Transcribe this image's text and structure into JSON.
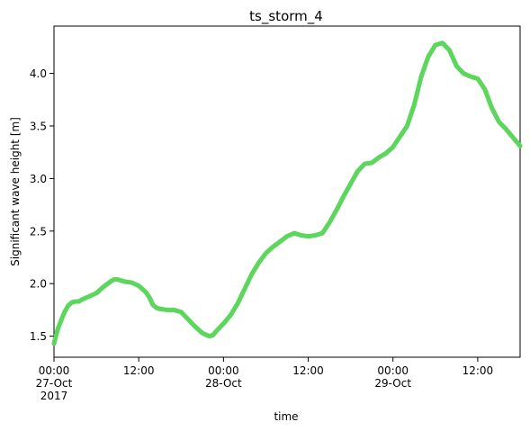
{
  "chart_data": {
    "type": "scatter",
    "title": "ts_storm_4",
    "xlabel": "time",
    "ylabel": "Significant wave height [m]",
    "x_unit": "hour",
    "xlim": [
      "2017-10-27 00:00",
      "2017-10-29 18:00"
    ],
    "ylim": [
      1.3,
      4.45
    ],
    "y_ticks": [
      "1.5",
      "2.0",
      "2.5",
      "3.0",
      "3.5",
      "4.0"
    ],
    "x_ticks": [
      {
        "at": "2017-10-27 00:00",
        "lines": [
          "00:00",
          "27-Oct",
          "2017"
        ]
      },
      {
        "at": "2017-10-27 12:00",
        "lines": [
          "12:00"
        ]
      },
      {
        "at": "2017-10-28 00:00",
        "lines": [
          "00:00",
          "28-Oct"
        ]
      },
      {
        "at": "2017-10-28 12:00",
        "lines": [
          "12:00"
        ]
      },
      {
        "at": "2017-10-29 00:00",
        "lines": [
          "00:00",
          "29-Oct"
        ]
      },
      {
        "at": "2017-10-29 12:00",
        "lines": [
          "12:00"
        ]
      }
    ],
    "series": [
      {
        "color": "#5cd65c",
        "marker": "circle",
        "points": [
          [
            "2017-10-27 00:00",
            1.43
          ],
          [
            "2017-10-27 00:30",
            1.56
          ],
          [
            "2017-10-27 01:00",
            1.65
          ],
          [
            "2017-10-27 01:30",
            1.73
          ],
          [
            "2017-10-27 02:00",
            1.79
          ],
          [
            "2017-10-27 02:30",
            1.82
          ],
          [
            "2017-10-27 03:00",
            1.83
          ],
          [
            "2017-10-27 03:30",
            1.83
          ],
          [
            "2017-10-27 04:00",
            1.85
          ],
          [
            "2017-10-27 05:00",
            1.88
          ],
          [
            "2017-10-27 06:00",
            1.91
          ],
          [
            "2017-10-27 07:00",
            1.97
          ],
          [
            "2017-10-27 08:00",
            2.02
          ],
          [
            "2017-10-27 08:30",
            2.04
          ],
          [
            "2017-10-27 09:00",
            2.04
          ],
          [
            "2017-10-27 09:30",
            2.03
          ],
          [
            "2017-10-27 10:00",
            2.02
          ],
          [
            "2017-10-27 11:00",
            2.01
          ],
          [
            "2017-10-27 12:00",
            1.98
          ],
          [
            "2017-10-27 13:00",
            1.92
          ],
          [
            "2017-10-27 13:30",
            1.87
          ],
          [
            "2017-10-27 14:00",
            1.8
          ],
          [
            "2017-10-27 14:30",
            1.77
          ],
          [
            "2017-10-27 15:00",
            1.76
          ],
          [
            "2017-10-27 16:00",
            1.75
          ],
          [
            "2017-10-27 17:00",
            1.75
          ],
          [
            "2017-10-27 18:00",
            1.73
          ],
          [
            "2017-10-27 19:00",
            1.66
          ],
          [
            "2017-10-27 20:00",
            1.59
          ],
          [
            "2017-10-27 21:00",
            1.53
          ],
          [
            "2017-10-27 22:00",
            1.5
          ],
          [
            "2017-10-27 22:30",
            1.51
          ],
          [
            "2017-10-27 23:00",
            1.55
          ],
          [
            "2017-10-28 00:00",
            1.62
          ],
          [
            "2017-10-28 01:00",
            1.7
          ],
          [
            "2017-10-28 02:00",
            1.81
          ],
          [
            "2017-10-28 03:00",
            1.95
          ],
          [
            "2017-10-28 04:00",
            2.09
          ],
          [
            "2017-10-28 05:00",
            2.2
          ],
          [
            "2017-10-28 06:00",
            2.29
          ],
          [
            "2017-10-28 07:00",
            2.35
          ],
          [
            "2017-10-28 08:00",
            2.4
          ],
          [
            "2017-10-28 09:00",
            2.45
          ],
          [
            "2017-10-28 10:00",
            2.48
          ],
          [
            "2017-10-28 10:30",
            2.47
          ],
          [
            "2017-10-28 11:00",
            2.46
          ],
          [
            "2017-10-28 12:00",
            2.45
          ],
          [
            "2017-10-28 13:00",
            2.46
          ],
          [
            "2017-10-28 14:00",
            2.48
          ],
          [
            "2017-10-28 15:00",
            2.58
          ],
          [
            "2017-10-28 16:00",
            2.7
          ],
          [
            "2017-10-28 17:00",
            2.83
          ],
          [
            "2017-10-28 18:00",
            2.95
          ],
          [
            "2017-10-28 19:00",
            3.07
          ],
          [
            "2017-10-28 20:00",
            3.14
          ],
          [
            "2017-10-28 21:00",
            3.15
          ],
          [
            "2017-10-28 22:00",
            3.2
          ],
          [
            "2017-10-28 23:00",
            3.24
          ],
          [
            "2017-10-29 00:00",
            3.3
          ],
          [
            "2017-10-29 01:00",
            3.4
          ],
          [
            "2017-10-29 02:00",
            3.5
          ],
          [
            "2017-10-29 03:00",
            3.7
          ],
          [
            "2017-10-29 04:00",
            3.97
          ],
          [
            "2017-10-29 05:00",
            4.16
          ],
          [
            "2017-10-29 06:00",
            4.27
          ],
          [
            "2017-10-29 07:00",
            4.29
          ],
          [
            "2017-10-29 08:00",
            4.22
          ],
          [
            "2017-10-29 09:00",
            4.07
          ],
          [
            "2017-10-29 10:00",
            4.0
          ],
          [
            "2017-10-29 11:00",
            3.97
          ],
          [
            "2017-10-29 12:00",
            3.95
          ],
          [
            "2017-10-29 13:00",
            3.85
          ],
          [
            "2017-10-29 14:00",
            3.67
          ],
          [
            "2017-10-29 15:00",
            3.54
          ],
          [
            "2017-10-29 16:00",
            3.47
          ],
          [
            "2017-10-29 17:00",
            3.39
          ],
          [
            "2017-10-29 18:00",
            3.31
          ]
        ]
      }
    ],
    "grid": false,
    "legend": "none"
  }
}
